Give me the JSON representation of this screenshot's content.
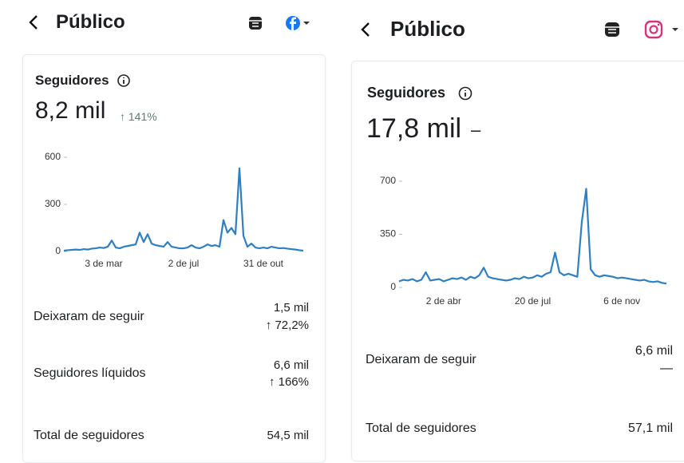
{
  "panels": [
    {
      "header": {
        "title": "Público"
      },
      "card": {
        "title": "Seguidores",
        "metric": "8,2 mil",
        "change": "↑ 141%",
        "chart": {
          "type": "line",
          "color": "#2f7fc1",
          "ylim": [
            0,
            600
          ],
          "yticks": [
            0,
            300,
            600
          ],
          "categories": [
            null,
            null,
            null,
            null,
            null,
            null,
            null,
            null,
            null,
            null,
            "3 de mar",
            null,
            null,
            null,
            null,
            null,
            null,
            null,
            null,
            null,
            null,
            null,
            null,
            null,
            null,
            null,
            null,
            null,
            null,
            null,
            "2 de jul",
            null,
            null,
            null,
            null,
            null,
            null,
            null,
            null,
            null,
            null,
            null,
            null,
            null,
            null,
            null,
            null,
            null,
            null,
            null,
            "31 de out",
            null,
            null,
            null,
            null,
            null,
            null,
            null,
            null,
            null,
            null
          ],
          "values": [
            5,
            8,
            10,
            12,
            10,
            15,
            12,
            18,
            20,
            25,
            22,
            30,
            70,
            25,
            20,
            30,
            35,
            40,
            45,
            120,
            60,
            110,
            50,
            40,
            35,
            30,
            60,
            30,
            25,
            20,
            20,
            25,
            40,
            25,
            20,
            30,
            45,
            35,
            40,
            30,
            200,
            120,
            150,
            110,
            530,
            100,
            30,
            50,
            25,
            20,
            25,
            20,
            30,
            25,
            20,
            22,
            18,
            15,
            12,
            8,
            5
          ]
        },
        "rows": [
          {
            "label": "Deixaram de seguir",
            "value": "1,5 mil",
            "change": "↑ 72,2%"
          },
          {
            "label": "Seguidores líquidos",
            "value": "6,6 mil",
            "change": "↑ 166%"
          },
          {
            "label": "Total de seguidores",
            "value": "54,5 mil"
          }
        ]
      }
    },
    {
      "header": {
        "title": "Público"
      },
      "card": {
        "title": "Seguidores",
        "metric": "17,8 mil",
        "change": "–",
        "chart": {
          "type": "line",
          "color": "#2f7fc1",
          "ylim": [
            0,
            700
          ],
          "yticks": [
            0,
            350,
            700
          ],
          "categories": [
            null,
            null,
            null,
            null,
            null,
            null,
            null,
            null,
            null,
            null,
            "2 de abr",
            null,
            null,
            null,
            null,
            null,
            null,
            null,
            null,
            null,
            null,
            null,
            null,
            null,
            null,
            null,
            null,
            null,
            null,
            null,
            "20 de jul",
            null,
            null,
            null,
            null,
            null,
            null,
            null,
            null,
            null,
            null,
            null,
            null,
            null,
            null,
            null,
            null,
            null,
            null,
            null,
            "6 de nov",
            null,
            null,
            null,
            null,
            null,
            null,
            null,
            null,
            null,
            null
          ],
          "values": [
            40,
            50,
            45,
            55,
            40,
            50,
            100,
            45,
            50,
            55,
            40,
            50,
            60,
            55,
            65,
            50,
            70,
            60,
            80,
            130,
            70,
            60,
            55,
            50,
            45,
            50,
            60,
            55,
            70,
            60,
            65,
            80,
            70,
            90,
            100,
            230,
            100,
            80,
            90,
            80,
            70,
            430,
            650,
            120,
            80,
            70,
            80,
            75,
            70,
            60,
            65,
            60,
            55,
            50,
            45,
            50,
            40,
            35,
            40,
            30,
            25
          ]
        },
        "rows": [
          {
            "label": "Deixaram de seguir",
            "value": "6,6 mil",
            "change": "—"
          },
          {
            "label": "Total de seguidores",
            "value": "57,1 mil"
          }
        ]
      }
    }
  ]
}
